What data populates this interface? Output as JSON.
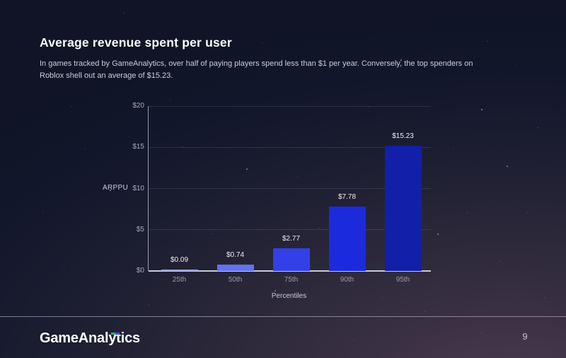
{
  "page": {
    "page_number": "9"
  },
  "header": {
    "title": "Average revenue spent per user",
    "subtitle_lines": [
      "In games tracked by GameAnalytics, over half of paying players spend less than $1 per year. Conversely, the top spenders on",
      "Roblox shell out an average of $15.23."
    ]
  },
  "footer": {
    "logo_text": "GameAnalytics",
    "logo_mark_colors": [
      "#2bb573",
      "#3b53e6"
    ]
  },
  "chart_data": {
    "type": "bar",
    "title": "",
    "xlabel": "Percentiles",
    "ylabel": "ARPPU",
    "categories": [
      "25th",
      "50th",
      "75th",
      "90th",
      "95th"
    ],
    "values": [
      0.09,
      0.74,
      2.77,
      7.78,
      15.23
    ],
    "value_labels": [
      "$0.09",
      "$0.74",
      "$2.77",
      "$7.78",
      "$15.23"
    ],
    "bar_colors": [
      "#99a3dd",
      "#6372ee",
      "#3340e8",
      "#1c2ade",
      "#121fa8"
    ],
    "ylim": [
      0,
      20
    ],
    "yticks": [
      {
        "value": 0,
        "label": "$0"
      },
      {
        "value": 5,
        "label": "$5"
      },
      {
        "value": 10,
        "label": "$10"
      },
      {
        "value": 15,
        "label": "$15"
      },
      {
        "value": 20,
        "label": "$20"
      }
    ],
    "grid": true,
    "legend": false
  }
}
